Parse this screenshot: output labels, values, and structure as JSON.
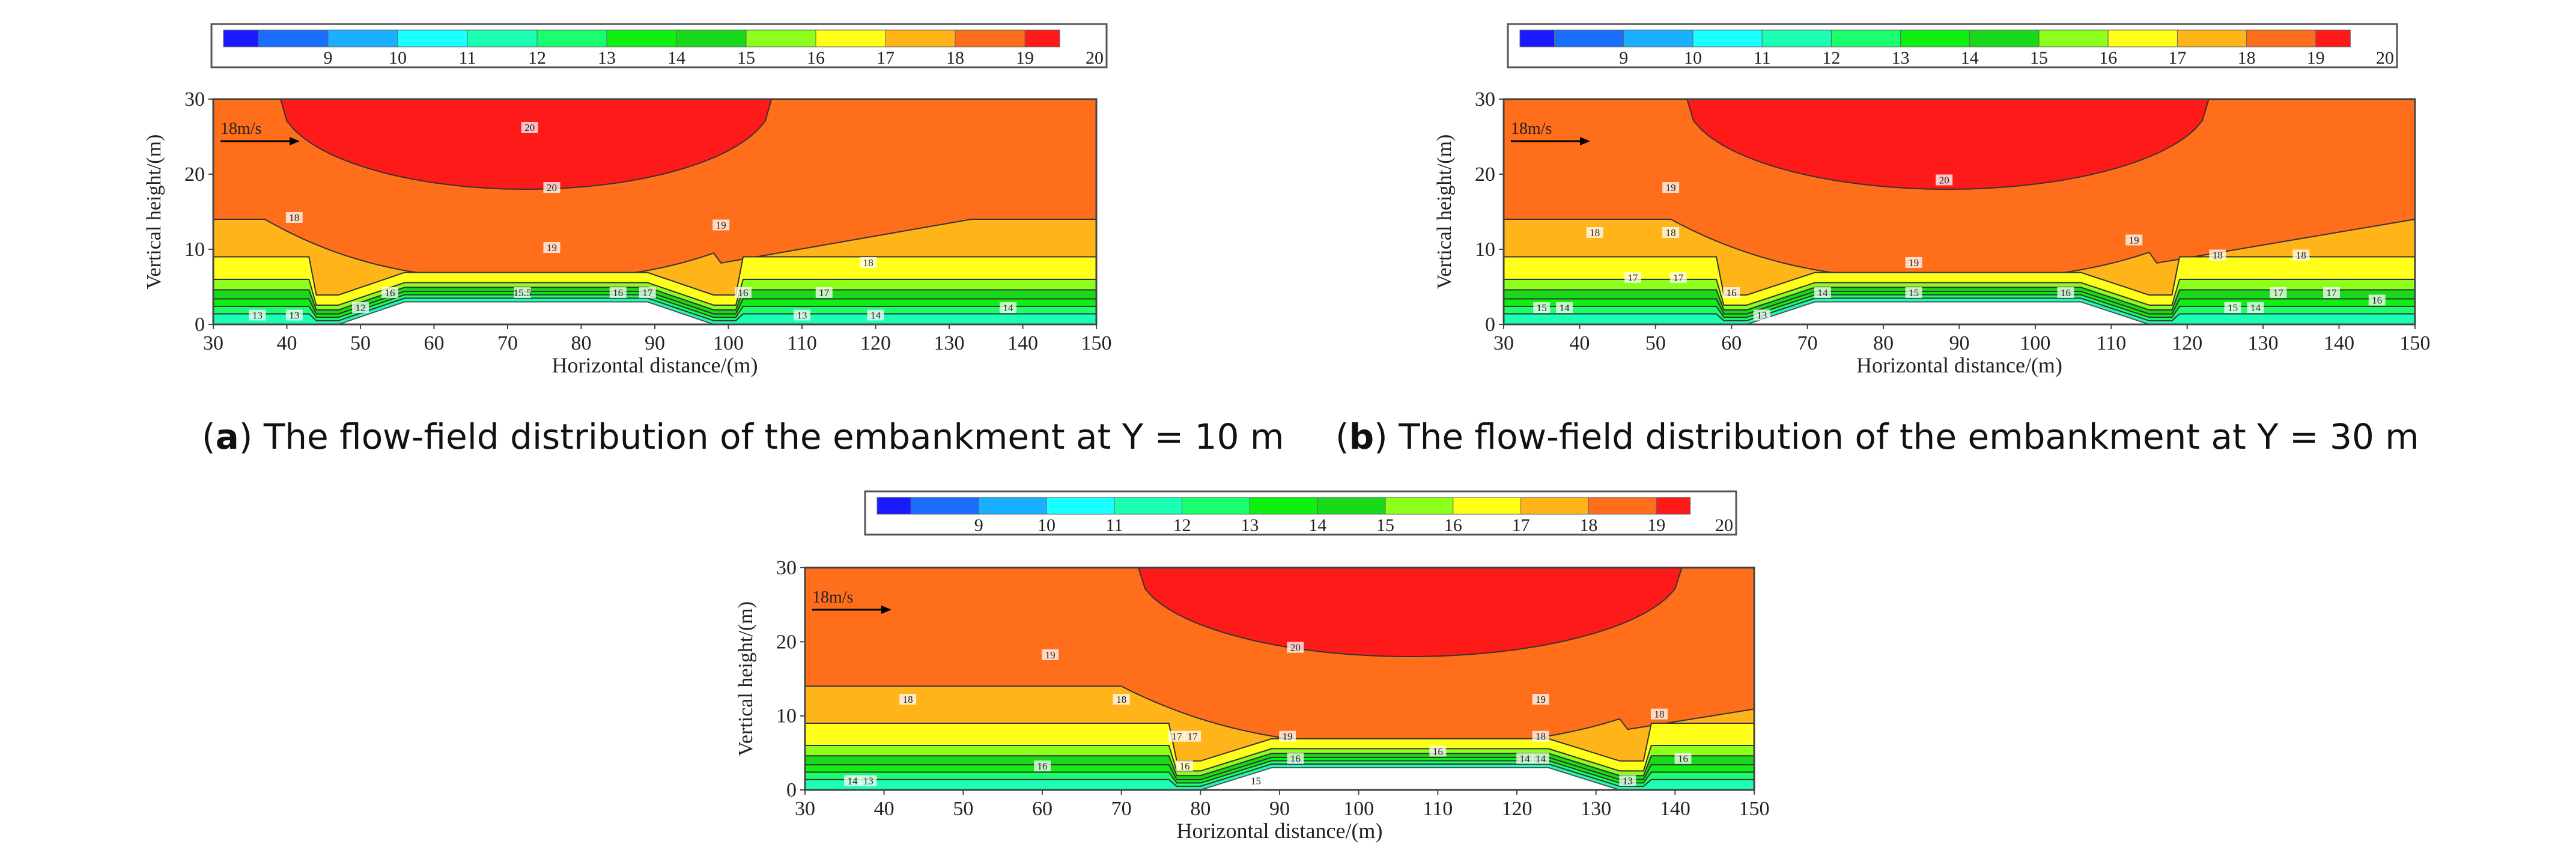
{
  "captions": [
    {
      "letter": "a",
      "prefix": "(",
      "suffix": ") The flow-field distribution of the embankment at Y = 10 m"
    },
    {
      "letter": "b",
      "prefix": "(",
      "suffix": ") The flow-field distribution of the embankment at Y = 30 m"
    }
  ],
  "colors": {
    "palette": [
      "#1a1aff",
      "#1a6eff",
      "#1ab0ff",
      "#1affff",
      "#1affb4",
      "#1aff6e",
      "#10f010",
      "#1ad81a",
      "#8cff1a",
      "#ffff1a",
      "#ffb41a",
      "#ff6e1a",
      "#ff1a1a"
    ],
    "text": "#222222",
    "line": "#333333"
  },
  "chart_data": [
    {
      "type": "contour",
      "id": "a",
      "legend_ticks": [
        "9",
        "10",
        "11",
        "12",
        "13",
        "14",
        "15",
        "16",
        "17",
        "18",
        "19",
        "20"
      ],
      "xlabel": "Horizontal distance/(m)",
      "ylabel": "Vertical height/(m)",
      "xlim": [
        30,
        150
      ],
      "ylim": [
        0,
        30
      ],
      "xticks": [
        30,
        40,
        50,
        60,
        70,
        80,
        90,
        100,
        110,
        120,
        130,
        140,
        150
      ],
      "yticks": [
        0,
        10,
        20,
        30
      ],
      "vector_label": "18m/s",
      "embankment": {
        "start": 47,
        "top_start": 56,
        "top_end": 89,
        "end": 98,
        "height": 3
      },
      "bands": [
        {
          "level": 20,
          "color_index": 12
        },
        {
          "level": 19,
          "color_index": 11
        },
        {
          "level": 18,
          "color_index": 10
        },
        {
          "level": 17,
          "color_index": 9
        },
        {
          "level": 16,
          "color_index": 8
        },
        {
          "level": 15,
          "color_index": 7
        },
        {
          "level": 14,
          "color_index": 6
        },
        {
          "level": 13,
          "color_index": 5
        },
        {
          "level": 12,
          "color_index": 4
        }
      ],
      "contour_labels": [
        {
          "text": "20",
          "x": 73,
          "y": 26
        },
        {
          "text": "20",
          "x": 76,
          "y": 18
        },
        {
          "text": "19",
          "x": 99,
          "y": 13
        },
        {
          "text": "19",
          "x": 76,
          "y": 10
        },
        {
          "text": "18",
          "x": 41,
          "y": 14
        },
        {
          "text": "18",
          "x": 119,
          "y": 8
        },
        {
          "text": "16",
          "x": 54,
          "y": 4
        },
        {
          "text": "16",
          "x": 85,
          "y": 4
        },
        {
          "text": "17",
          "x": 89,
          "y": 4
        },
        {
          "text": "15.5",
          "x": 72,
          "y": 4
        },
        {
          "text": "16",
          "x": 102,
          "y": 4
        },
        {
          "text": "17",
          "x": 113,
          "y": 4
        },
        {
          "text": "13",
          "x": 36,
          "y": 1
        },
        {
          "text": "13",
          "x": 41,
          "y": 1
        },
        {
          "text": "12",
          "x": 50,
          "y": 2
        },
        {
          "text": "13",
          "x": 110,
          "y": 1
        },
        {
          "text": "14",
          "x": 120,
          "y": 1
        },
        {
          "text": "14",
          "x": 138,
          "y": 2
        }
      ]
    },
    {
      "type": "contour",
      "id": "b",
      "legend_ticks": [
        "9",
        "10",
        "11",
        "12",
        "13",
        "14",
        "15",
        "16",
        "17",
        "18",
        "19",
        "20"
      ],
      "xlabel": "Horizontal distance/(m)",
      "ylabel": "Vertical height/(m)",
      "xlim": [
        30,
        150
      ],
      "ylim": [
        0,
        30
      ],
      "xticks": [
        30,
        40,
        50,
        60,
        70,
        80,
        90,
        100,
        110,
        120,
        130,
        140,
        150
      ],
      "yticks": [
        0,
        10,
        20,
        30
      ],
      "vector_label": "18m/s",
      "embankment": {
        "start": 62,
        "top_start": 71,
        "top_end": 106,
        "end": 115,
        "height": 3
      },
      "bands": [
        {
          "level": 20,
          "color_index": 12
        },
        {
          "level": 19,
          "color_index": 11
        },
        {
          "level": 18,
          "color_index": 10
        },
        {
          "level": 17,
          "color_index": 9
        },
        {
          "level": 16,
          "color_index": 8
        },
        {
          "level": 15,
          "color_index": 7
        },
        {
          "level": 14,
          "color_index": 6
        },
        {
          "level": 13,
          "color_index": 5
        },
        {
          "level": 12,
          "color_index": 4
        }
      ],
      "contour_labels": [
        {
          "text": "20",
          "x": 88,
          "y": 19
        },
        {
          "text": "19",
          "x": 52,
          "y": 18
        },
        {
          "text": "19",
          "x": 84,
          "y": 8
        },
        {
          "text": "19",
          "x": 113,
          "y": 11
        },
        {
          "text": "18",
          "x": 42,
          "y": 12
        },
        {
          "text": "18",
          "x": 52,
          "y": 12
        },
        {
          "text": "18",
          "x": 124,
          "y": 9
        },
        {
          "text": "18",
          "x": 135,
          "y": 9
        },
        {
          "text": "17",
          "x": 47,
          "y": 6
        },
        {
          "text": "17",
          "x": 53,
          "y": 6
        },
        {
          "text": "16",
          "x": 60,
          "y": 4
        },
        {
          "text": "17",
          "x": 132,
          "y": 4
        },
        {
          "text": "17",
          "x": 139,
          "y": 4
        },
        {
          "text": "16",
          "x": 145,
          "y": 3
        },
        {
          "text": "14",
          "x": 72,
          "y": 4
        },
        {
          "text": "15",
          "x": 84,
          "y": 4
        },
        {
          "text": "16",
          "x": 104,
          "y": 4
        },
        {
          "text": "13",
          "x": 64,
          "y": 1
        },
        {
          "text": "15",
          "x": 35,
          "y": 2
        },
        {
          "text": "14",
          "x": 38,
          "y": 2
        },
        {
          "text": "15",
          "x": 126,
          "y": 2
        },
        {
          "text": "14",
          "x": 129,
          "y": 2
        }
      ]
    },
    {
      "type": "contour",
      "id": "c",
      "legend_ticks": [
        "9",
        "10",
        "11",
        "12",
        "13",
        "14",
        "15",
        "16",
        "17",
        "18",
        "19",
        "20"
      ],
      "xlabel": "Horizontal distance/(m)",
      "ylabel": "Vertical height/(m)",
      "xlim": [
        30,
        150
      ],
      "ylim": [
        0,
        30
      ],
      "xticks": [
        30,
        40,
        50,
        60,
        70,
        80,
        90,
        100,
        110,
        120,
        130,
        140,
        150
      ],
      "yticks": [
        0,
        10,
        20,
        30
      ],
      "vector_label": "18m/s",
      "embankment": {
        "start": 80,
        "top_start": 89,
        "top_end": 124,
        "end": 133,
        "height": 3
      },
      "bands": [
        {
          "level": 20,
          "color_index": 12
        },
        {
          "level": 19,
          "color_index": 11
        },
        {
          "level": 18,
          "color_index": 10
        },
        {
          "level": 17,
          "color_index": 9
        },
        {
          "level": 16,
          "color_index": 8
        },
        {
          "level": 15,
          "color_index": 7
        },
        {
          "level": 14,
          "color_index": 6
        },
        {
          "level": 13,
          "color_index": 5
        },
        {
          "level": 12,
          "color_index": 4
        }
      ],
      "contour_labels": [
        {
          "text": "20",
          "x": 92,
          "y": 19
        },
        {
          "text": "19",
          "x": 61,
          "y": 18
        },
        {
          "text": "19",
          "x": 91,
          "y": 7
        },
        {
          "text": "19",
          "x": 123,
          "y": 12
        },
        {
          "text": "18",
          "x": 43,
          "y": 12
        },
        {
          "text": "18",
          "x": 70,
          "y": 12
        },
        {
          "text": "18",
          "x": 123,
          "y": 7
        },
        {
          "text": "18",
          "x": 138,
          "y": 10
        },
        {
          "text": "17",
          "x": 77,
          "y": 7
        },
        {
          "text": "17",
          "x": 79,
          "y": 7
        },
        {
          "text": "16",
          "x": 60,
          "y": 3
        },
        {
          "text": "16",
          "x": 78,
          "y": 3
        },
        {
          "text": "16",
          "x": 92,
          "y": 4
        },
        {
          "text": "16",
          "x": 110,
          "y": 5
        },
        {
          "text": "14",
          "x": 121,
          "y": 4
        },
        {
          "text": "14",
          "x": 123,
          "y": 4
        },
        {
          "text": "16",
          "x": 141,
          "y": 4
        },
        {
          "text": "15",
          "x": 87,
          "y": 1
        },
        {
          "text": "14",
          "x": 36,
          "y": 1
        },
        {
          "text": "13",
          "x": 38,
          "y": 1
        },
        {
          "text": "13",
          "x": 134,
          "y": 1
        }
      ]
    }
  ]
}
